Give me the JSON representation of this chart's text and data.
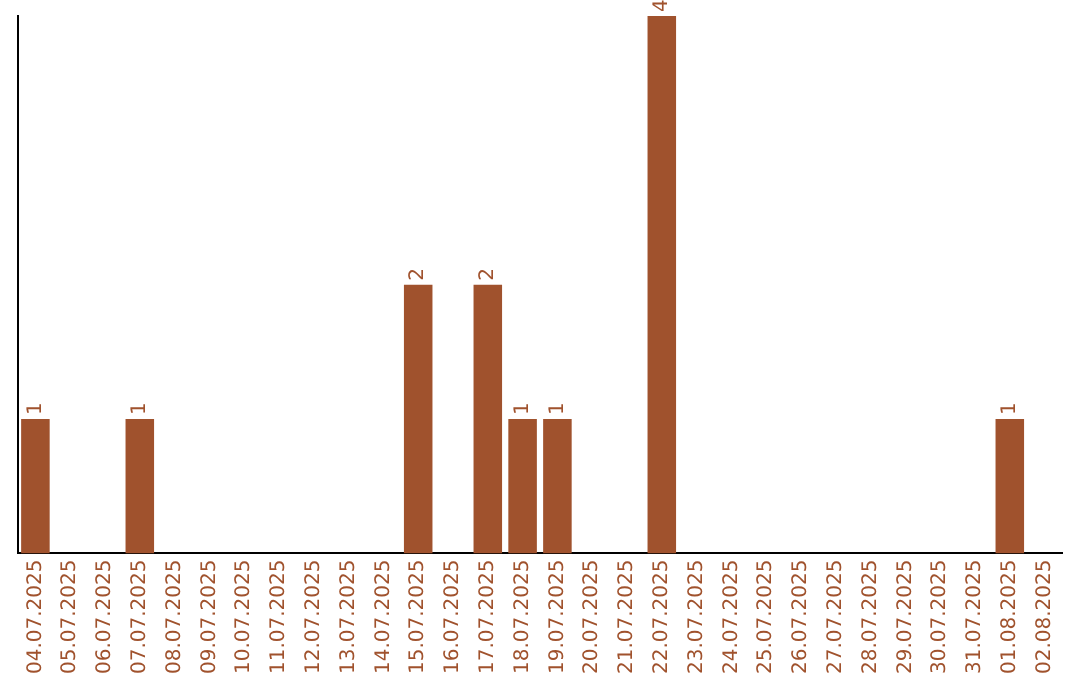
{
  "chart_data": {
    "type": "bar",
    "categories": [
      "04.07.2025",
      "05.07.2025",
      "06.07.2025",
      "07.07.2025",
      "08.07.2025",
      "09.07.2025",
      "10.07.2025",
      "11.07.2025",
      "12.07.2025",
      "13.07.2025",
      "14.07.2025",
      "15.07.2025",
      "16.07.2025",
      "17.07.2025",
      "18.07.2025",
      "19.07.2025",
      "20.07.2025",
      "21.07.2025",
      "22.07.2025",
      "23.07.2025",
      "24.07.2025",
      "25.07.2025",
      "26.07.2025",
      "27.07.2025",
      "28.07.2025",
      "29.07.2025",
      "30.07.2025",
      "31.07.2025",
      "01.08.2025",
      "02.08.2025"
    ],
    "values": [
      1,
      0,
      0,
      1,
      0,
      0,
      0,
      0,
      0,
      0,
      0,
      2,
      0,
      2,
      1,
      1,
      0,
      0,
      4,
      0,
      0,
      0,
      0,
      0,
      0,
      0,
      0,
      0,
      1,
      0
    ],
    "value_labels": [
      "1",
      null,
      null,
      "1",
      null,
      null,
      null,
      null,
      null,
      null,
      null,
      "2",
      null,
      "2",
      "1",
      "1",
      null,
      null,
      "4",
      null,
      null,
      null,
      null,
      null,
      null,
      null,
      null,
      null,
      "1",
      null
    ],
    "color": "#a0522d",
    "ylim": [
      0,
      4
    ],
    "tick_labels": "x",
    "grid": false,
    "legend": false
  }
}
